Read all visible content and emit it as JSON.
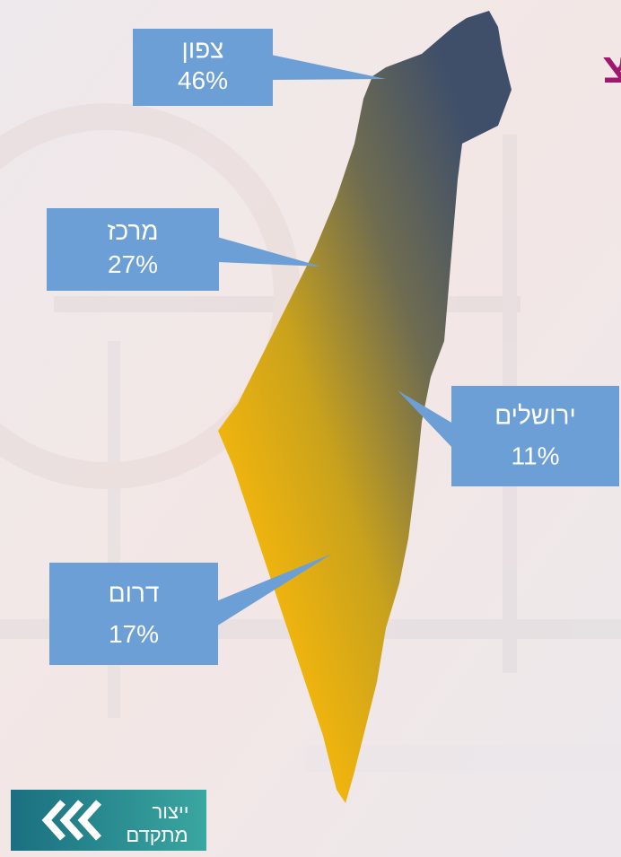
{
  "title": "צ",
  "regions": [
    {
      "name": "צפון",
      "value": "46%"
    },
    {
      "name": "מרכז",
      "value": "27%"
    },
    {
      "name": "ירושלים",
      "value": "11%"
    },
    {
      "name": "דרום",
      "value": "17%"
    }
  ],
  "logo": {
    "line1": "ייצור",
    "line2": "מתקדם"
  }
}
